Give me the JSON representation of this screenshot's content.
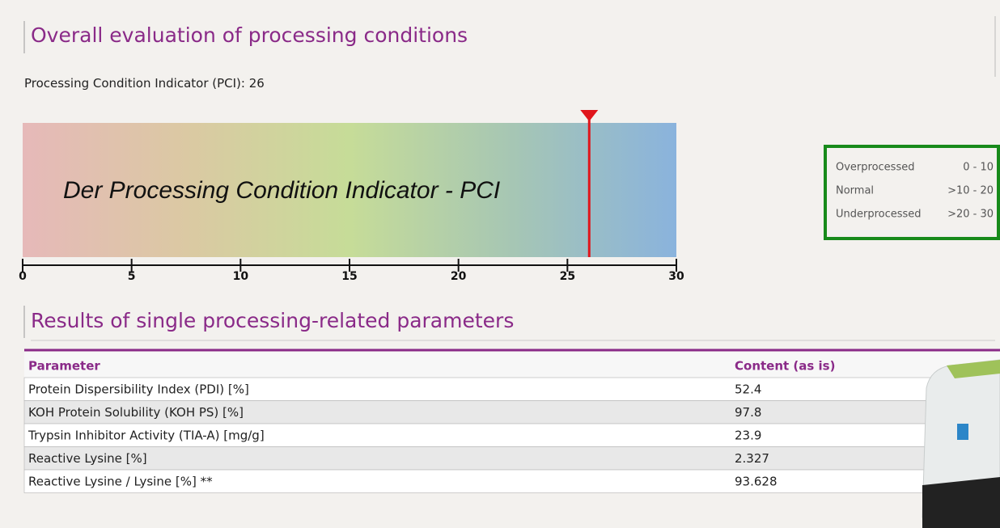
{
  "section1": {
    "title": "Overall evaluation of processing conditions",
    "pci_label": "Processing Condition Indicator (PCI):",
    "pci_value": 26,
    "gauge": {
      "overlay": "Der Processing Condition Indicator - PCI",
      "xlim": [
        0,
        30
      ],
      "xticks": [
        0,
        5,
        10,
        15,
        20,
        25,
        30
      ]
    },
    "legend": [
      {
        "name": "Overprocessed",
        "range": "0 - 10"
      },
      {
        "name": "Normal",
        "range": ">10 - 20"
      },
      {
        "name": "Underprocessed",
        "range": ">20 - 30"
      }
    ]
  },
  "section2": {
    "title": "Results of single processing-related parameters",
    "table": {
      "header": [
        "Parameter",
        "Content (as is)"
      ],
      "rows": [
        [
          "Protein Dispersibility Index (PDI) [%]",
          52.4
        ],
        [
          "KOH Protein Solubility (KOH PS) [%]",
          97.8
        ],
        [
          "Trypsin Inhibitor Activity (TIA-A) [mg/g]",
          23.9
        ],
        [
          "Reactive Lysine [%]",
          2.327
        ],
        [
          "Reactive Lysine / Lysine [%] **",
          93.628
        ]
      ]
    }
  }
}
